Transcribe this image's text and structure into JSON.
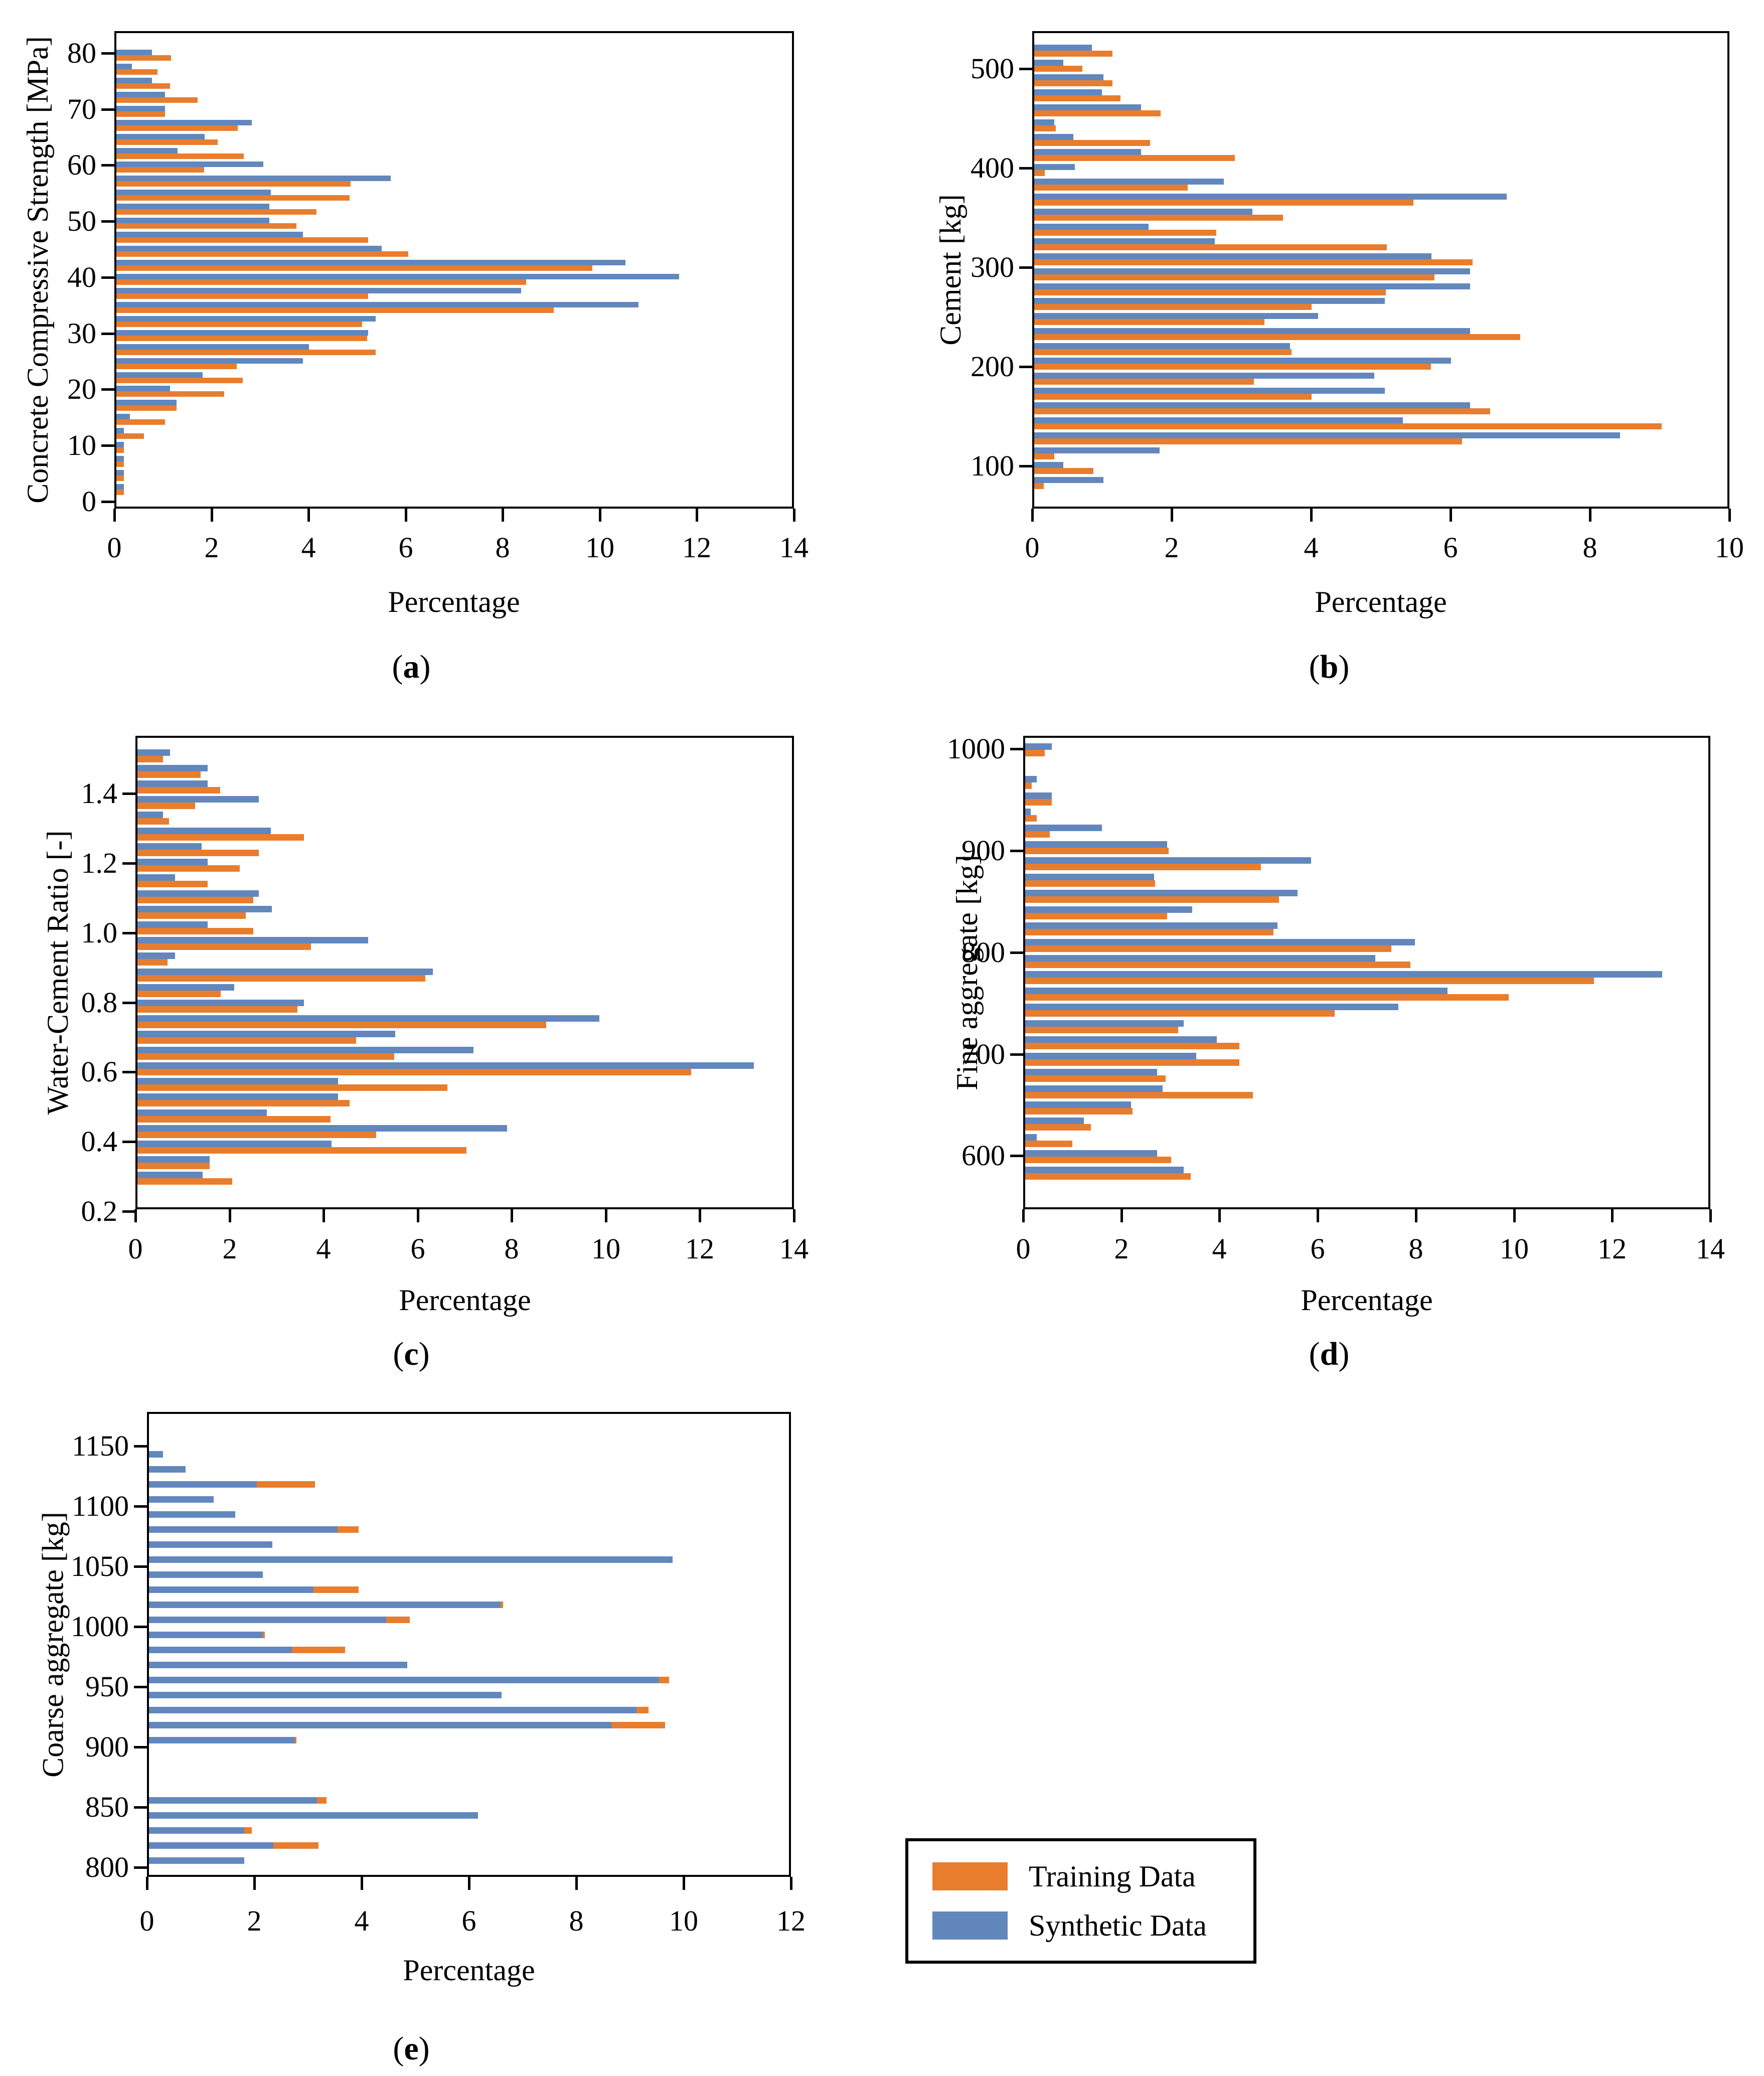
{
  "figure": {
    "paren_open": "(",
    "paren_close": ")",
    "background": "#ffffff"
  },
  "legend": {
    "position": "bottom-right",
    "items": [
      {
        "label": "Training Data",
        "color": "#e87d2e"
      },
      {
        "label": "Synthetic Data",
        "color": "#6287bd"
      }
    ]
  },
  "chart_data": [
    {
      "id": "a",
      "type": "bar",
      "orientation": "horizontal",
      "caption_letter": "a",
      "xlabel": "Percentage",
      "ylabel": "Concrete Compressive Strength [MPa]",
      "xlim": [
        0,
        14
      ],
      "xticks": [
        "0",
        "2",
        "4",
        "6",
        "8",
        "10",
        "12",
        "14"
      ],
      "yticks": [
        "0",
        "10",
        "20",
        "30",
        "40",
        "50",
        "60",
        "70",
        "80"
      ],
      "grid": false,
      "bins": [
        2.5,
        5,
        7.5,
        10,
        12.5,
        15,
        17.5,
        20,
        22.5,
        25,
        27.5,
        30,
        32.5,
        35,
        37.5,
        40,
        42.5,
        45,
        47.5,
        50,
        52.5,
        55,
        57.5,
        60,
        62.5,
        65,
        67.5,
        70,
        72.5,
        75,
        77.5,
        80
      ],
      "series": [
        {
          "name": "Training Data",
          "values": [
            0.15,
            0.15,
            0.15,
            0.15,
            0.57,
            1.0,
            1.24,
            2.22,
            2.6,
            2.48,
            5.34,
            5.17,
            5.06,
            9.01,
            5.19,
            8.44,
            9.81,
            6.01,
            5.19,
            3.71,
            4.12,
            4.8,
            4.82,
            1.81,
            2.62,
            2.09,
            2.5,
            1.0,
            1.67,
            1.11,
            0.85,
            1.13
          ]
        },
        {
          "name": "Synthetic Data",
          "values": [
            0.15,
            0.15,
            0.15,
            0.15,
            0.15,
            0.28,
            1.24,
            1.11,
            1.78,
            3.84,
            3.97,
            5.19,
            5.34,
            10.76,
            8.34,
            11.59,
            10.49,
            5.47,
            3.84,
            3.15,
            3.15,
            3.18,
            5.65,
            3.03,
            1.26,
            1.82,
            2.79,
            1.0,
            1.0,
            0.73,
            0.32,
            0.73
          ]
        }
      ]
    },
    {
      "id": "b",
      "type": "bar",
      "orientation": "horizontal",
      "caption_letter": "b",
      "xlabel": "Percentage",
      "ylabel": "Cement [kg]",
      "xlim": [
        0,
        10
      ],
      "xticks": [
        "0",
        "2",
        "4",
        "6",
        "8",
        "10"
      ],
      "yticks": [
        "100",
        "200",
        "300",
        "400",
        "500"
      ],
      "grid": false,
      "bins": [
        85,
        100,
        115,
        130,
        145,
        160,
        175,
        190,
        205,
        220,
        235,
        250,
        265,
        280,
        295,
        310,
        325,
        340,
        355,
        370,
        385,
        400,
        415,
        430,
        445,
        460,
        475,
        490,
        505,
        520
      ],
      "series": [
        {
          "name": "Training Data",
          "values": [
            0.14,
            0.85,
            0.29,
            6.14,
            9.0,
            6.54,
            3.98,
            3.15,
            5.69,
            3.69,
            6.97,
            3.3,
            3.98,
            5.04,
            5.74,
            6.29,
            5.06,
            2.61,
            3.57,
            5.44,
            2.2,
            0.15,
            2.88,
            1.66,
            0.31,
            1.81,
            1.24,
            1.12,
            0.69,
            1.12
          ]
        },
        {
          "name": "Synthetic Data",
          "values": [
            0.99,
            0.42,
            1.8,
            8.4,
            5.29,
            6.25,
            5.03,
            4.88,
            5.98,
            3.67,
            6.25,
            4.07,
            5.03,
            6.25,
            6.25,
            5.7,
            2.59,
            1.64,
            3.13,
            6.78,
            2.72,
            0.58,
            1.53,
            0.56,
            0.29,
            1.53,
            0.97,
            0.99,
            0.42,
            0.83
          ]
        }
      ]
    },
    {
      "id": "c",
      "type": "bar",
      "orientation": "horizontal",
      "caption_letter": "c",
      "xlabel": "Percentage",
      "ylabel": "Water-Cement Ratio [-]",
      "xlim": [
        0,
        14
      ],
      "xticks": [
        "0",
        "2",
        "4",
        "6",
        "8",
        "10",
        "12",
        "14"
      ],
      "yticks": [
        "0.2",
        "0.4",
        "0.6",
        "0.8",
        "1.0",
        "1.2",
        "1.4"
      ],
      "grid": false,
      "bins": [
        0.3,
        0.345,
        0.39,
        0.435,
        0.48,
        0.525,
        0.57,
        0.615,
        0.66,
        0.705,
        0.75,
        0.795,
        0.84,
        0.885,
        0.93,
        0.975,
        1.02,
        1.065,
        1.11,
        1.155,
        1.2,
        1.245,
        1.29,
        1.335,
        1.38,
        1.425,
        1.47,
        1.515
      ],
      "series": [
        {
          "name": "Training Data",
          "values": [
            2.02,
            1.54,
            6.99,
            5.08,
            4.11,
            4.51,
            6.59,
            11.77,
            5.46,
            4.65,
            8.69,
            3.4,
            1.77,
            6.12,
            0.64,
            3.69,
            2.46,
            2.3,
            2.46,
            1.49,
            2.17,
            2.58,
            3.54,
            0.67,
            1.23,
            1.76,
            1.34,
            0.54
          ]
        },
        {
          "name": "Synthetic Data",
          "values": [
            1.39,
            1.54,
            4.13,
            7.86,
            2.75,
            4.26,
            4.26,
            13.1,
            7.14,
            5.48,
            9.82,
            3.54,
            2.06,
            6.28,
            0.8,
            4.9,
            1.49,
            2.86,
            2.58,
            0.8,
            1.49,
            1.36,
            2.84,
            0.54,
            2.58,
            1.49,
            1.49,
            0.69
          ]
        }
      ]
    },
    {
      "id": "d",
      "type": "bar",
      "orientation": "horizontal",
      "caption_letter": "d",
      "xlabel": "Percentage",
      "ylabel": "Fine aggregate [kg]",
      "xlim": [
        0,
        14
      ],
      "xticks": [
        "0",
        "2",
        "4",
        "6",
        "8",
        "10",
        "12",
        "14"
      ],
      "yticks": [
        "600",
        "700",
        "800",
        "900",
        "1000"
      ],
      "grid": false,
      "bins": [
        585,
        601,
        617,
        633,
        649,
        665,
        681,
        697,
        713,
        729,
        745,
        761,
        777,
        793,
        809,
        825,
        841,
        857,
        873,
        889,
        905,
        921,
        937,
        953,
        969,
        985,
        1001
      ],
      "series": [
        {
          "name": "Training Data",
          "values": [
            3.37,
            2.97,
            0.96,
            1.34,
            2.19,
            4.64,
            2.86,
            4.36,
            4.36,
            3.12,
            6.31,
            9.85,
            11.59,
            7.85,
            7.46,
            5.06,
            2.89,
            5.17,
            2.65,
            4.8,
            2.92,
            0.5,
            0.24,
            0.54,
            0.13,
            0,
            0.4
          ]
        },
        {
          "name": "Synthetic Data",
          "values": [
            3.23,
            2.69,
            0.24,
            1.2,
            2.16,
            2.8,
            2.69,
            3.48,
            3.9,
            3.23,
            7.6,
            8.6,
            12.98,
            7.13,
            7.94,
            5.14,
            3.4,
            5.55,
            2.63,
            5.82,
            2.89,
            1.56,
            0.11,
            0.54,
            0.24,
            0,
            0.54
          ]
        }
      ]
    },
    {
      "id": "e",
      "type": "bar",
      "orientation": "horizontal",
      "overlapping_bars": true,
      "caption_letter": "e",
      "xlabel": "Percentage",
      "ylabel": "Coarse aggregate [kg]",
      "xlim": [
        0,
        12
      ],
      "xticks": [
        "0",
        "2",
        "4",
        "6",
        "8",
        "10",
        "12"
      ],
      "yticks": [
        "800",
        "850",
        "900",
        "950",
        "1000",
        "1050",
        "1100",
        "1150"
      ],
      "grid": false,
      "bins": [
        807.5,
        820,
        832.5,
        845,
        857.5,
        870,
        882.5,
        895,
        907.5,
        920,
        932.5,
        945,
        957.5,
        970,
        982.5,
        995,
        1007.5,
        1020,
        1032.5,
        1045,
        1057.5,
        1070,
        1082.5,
        1095,
        1107.5,
        1120,
        1132.5,
        1145
      ],
      "series": [
        {
          "name": "Training Data",
          "values": [
            0,
            3.16,
            1.92,
            0,
            3.31,
            0,
            0,
            0,
            2.75,
            9.62,
            9.31,
            0,
            9.69,
            0,
            3.65,
            2.16,
            4.86,
            6.6,
            3.91,
            0,
            0,
            0,
            3.91,
            0,
            0,
            3.09,
            0,
            0
          ]
        },
        {
          "name": "Synthetic Data",
          "values": [
            1.78,
            2.32,
            1.78,
            6.13,
            3.13,
            0,
            0,
            0,
            2.72,
            8.62,
            9.08,
            6.57,
            9.5,
            4.81,
            2.66,
            2.12,
            4.42,
            6.55,
            3.07,
            2.12,
            9.76,
            2.3,
            3.51,
            1.61,
            1.21,
            2.01,
            0.68,
            0.26
          ]
        }
      ]
    }
  ]
}
